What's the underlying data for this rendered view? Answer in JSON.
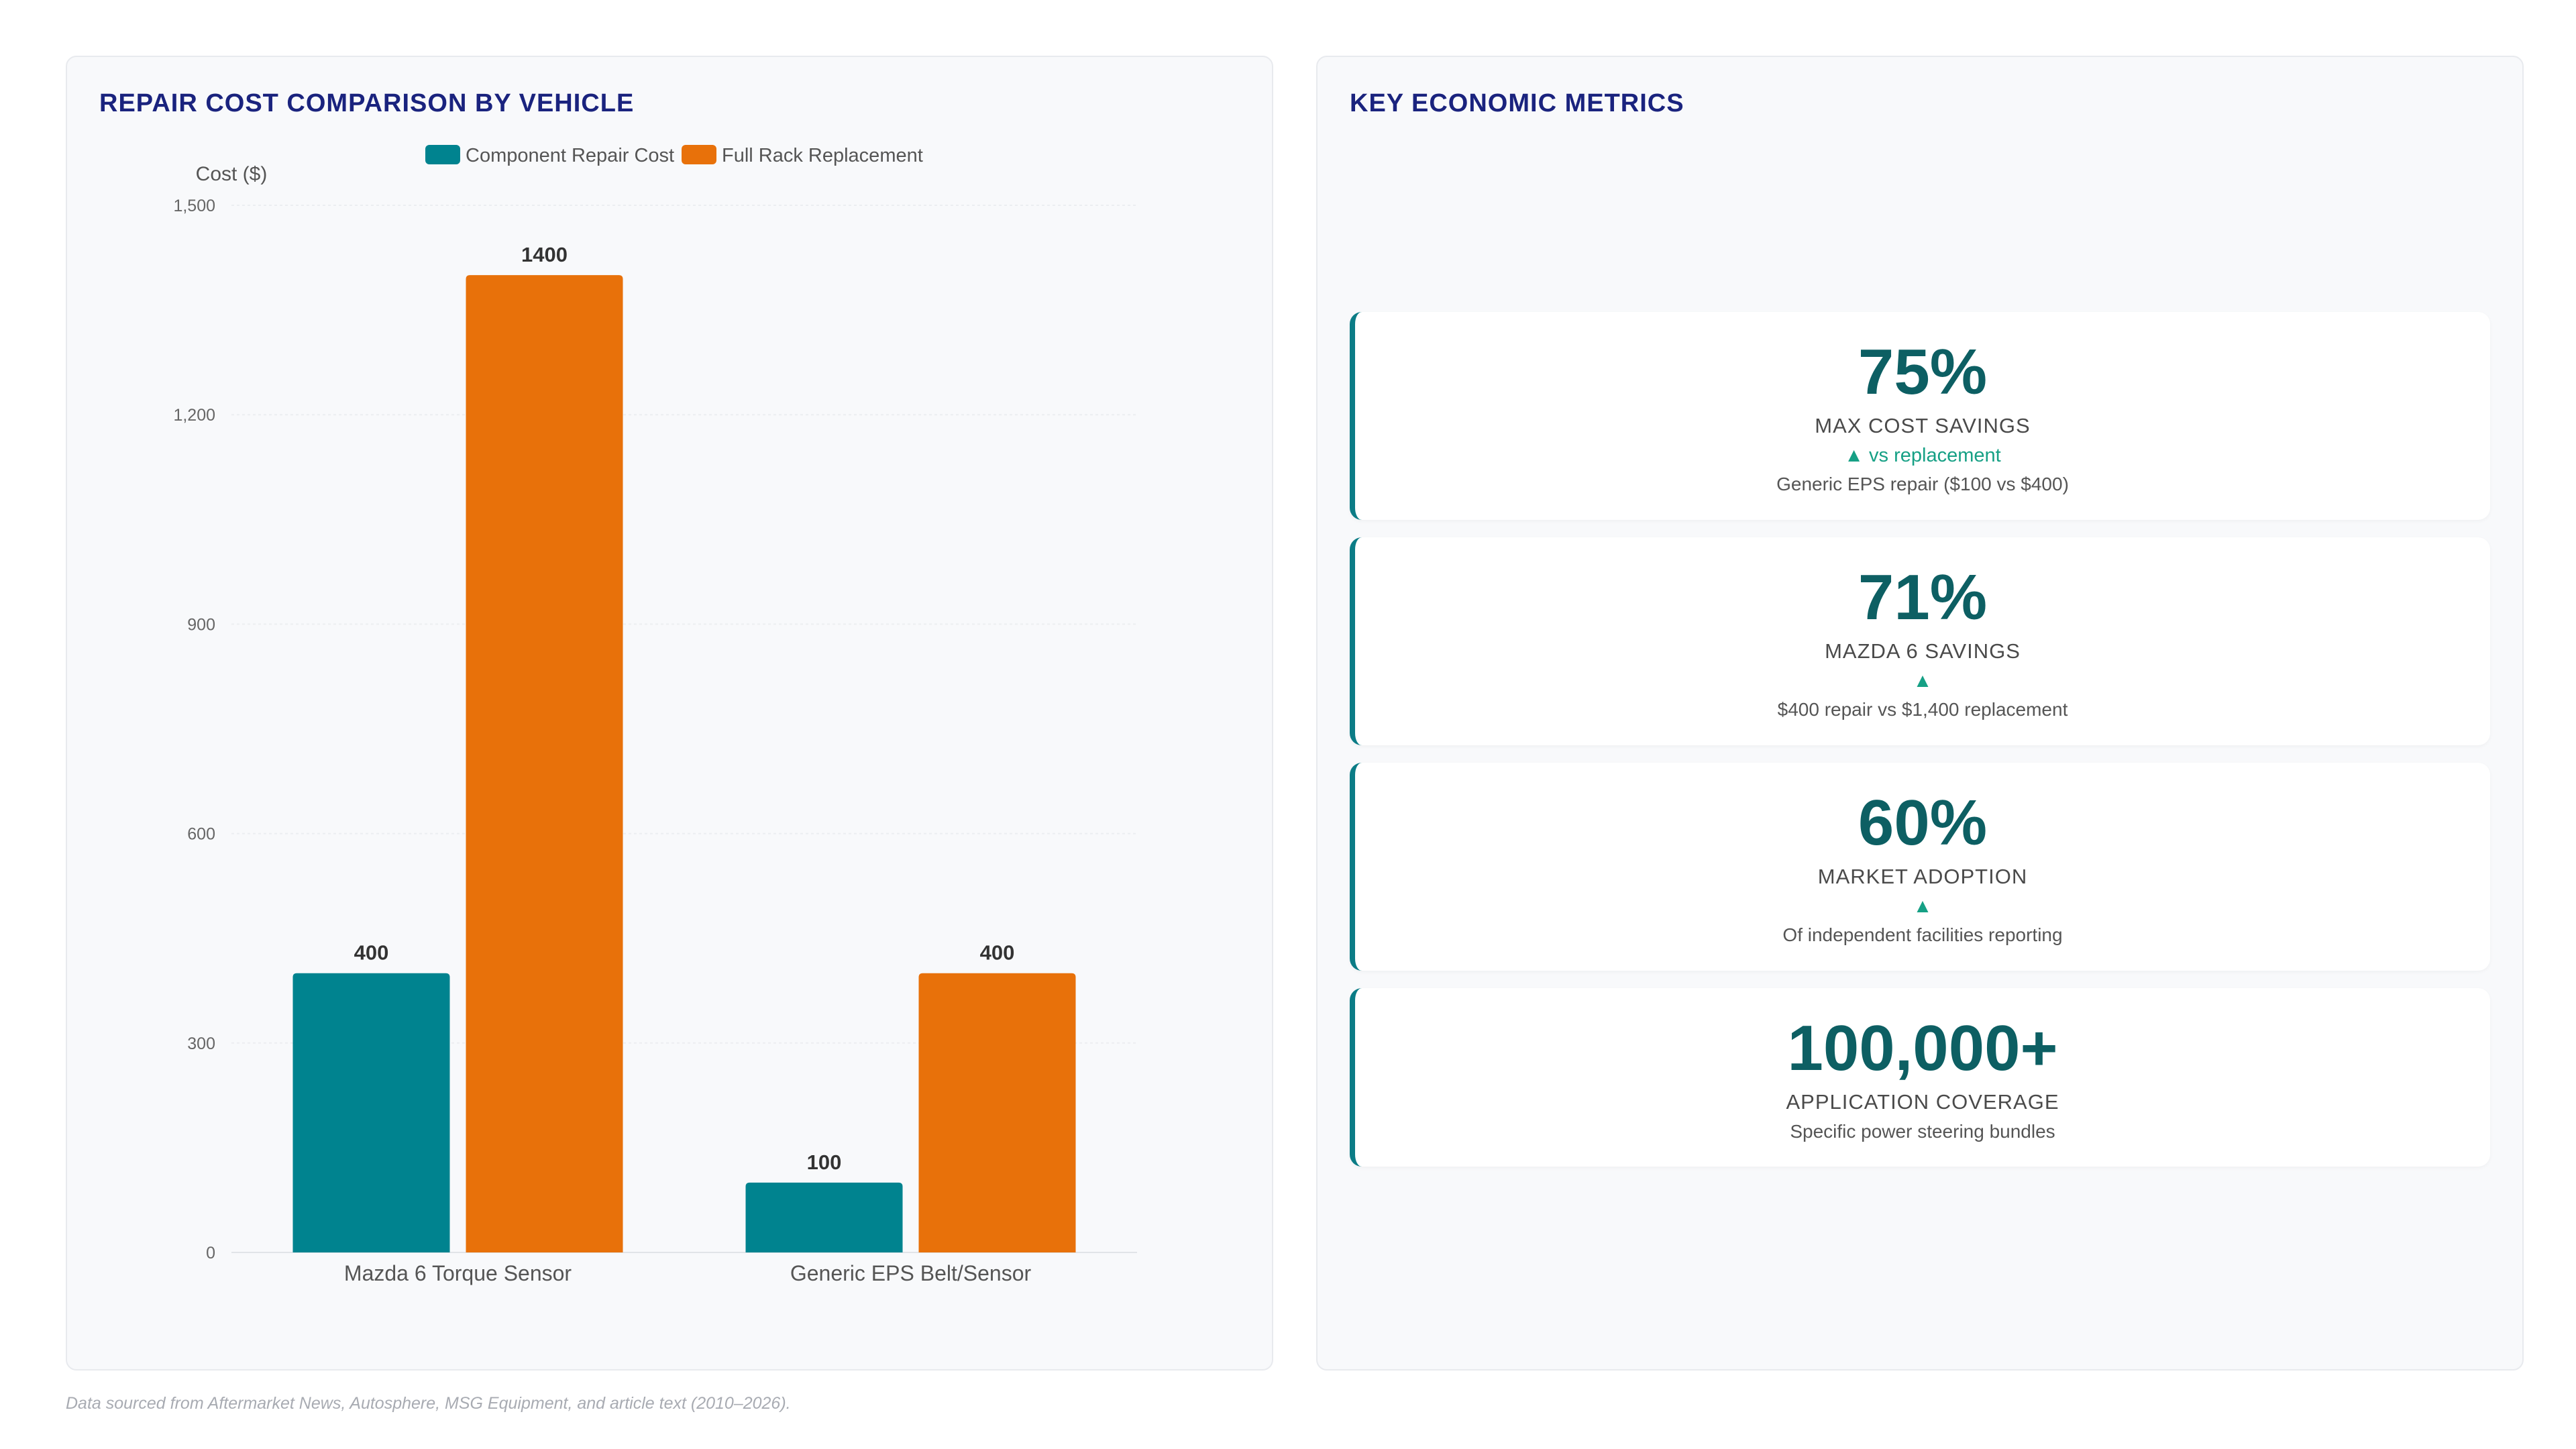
{
  "left_panel": {
    "title": "REPAIR COST COMPARISON BY VEHICLE"
  },
  "right_panel": {
    "title": "KEY ECONOMIC METRICS"
  },
  "chart_data": {
    "type": "bar",
    "categories": [
      "Mazda 6 Torque Sensor",
      "Generic EPS Belt/Sensor"
    ],
    "series": [
      {
        "name": "Component Repair Cost",
        "values": [
          400,
          100
        ],
        "color": "#00838f"
      },
      {
        "name": "Full Rack Replacement",
        "values": [
          1400,
          400
        ],
        "color": "#e8710a"
      }
    ],
    "ylabel": "Cost ($)",
    "ylim": [
      0,
      1500
    ],
    "yticks": [
      0,
      300,
      600,
      900,
      1200,
      1500
    ],
    "ytick_labels": [
      "0",
      "300",
      "600",
      "900",
      "1,200",
      "1,500"
    ],
    "legend": "top",
    "grid": true,
    "data_labels": true
  },
  "metrics": [
    {
      "value": "75%",
      "label": "MAX COST SAVINGS",
      "trend": "▲ vs replacement",
      "desc": "Generic EPS repair ($100 vs $400)"
    },
    {
      "value": "71%",
      "label": "MAZDA 6 SAVINGS",
      "trend": "▲",
      "desc": "$400 repair vs $1,400 replacement"
    },
    {
      "value": "60%",
      "label": "MARKET ADOPTION",
      "trend": "▲",
      "desc": "Of independent facilities reporting"
    },
    {
      "value": "100,000+",
      "label": "APPLICATION COVERAGE",
      "trend": "",
      "desc": "Specific power steering bundles"
    }
  ],
  "footer": {
    "note": "Data sourced from Aftermarket News, Autosphere, MSG Equipment, and article text (2010–2026)."
  }
}
